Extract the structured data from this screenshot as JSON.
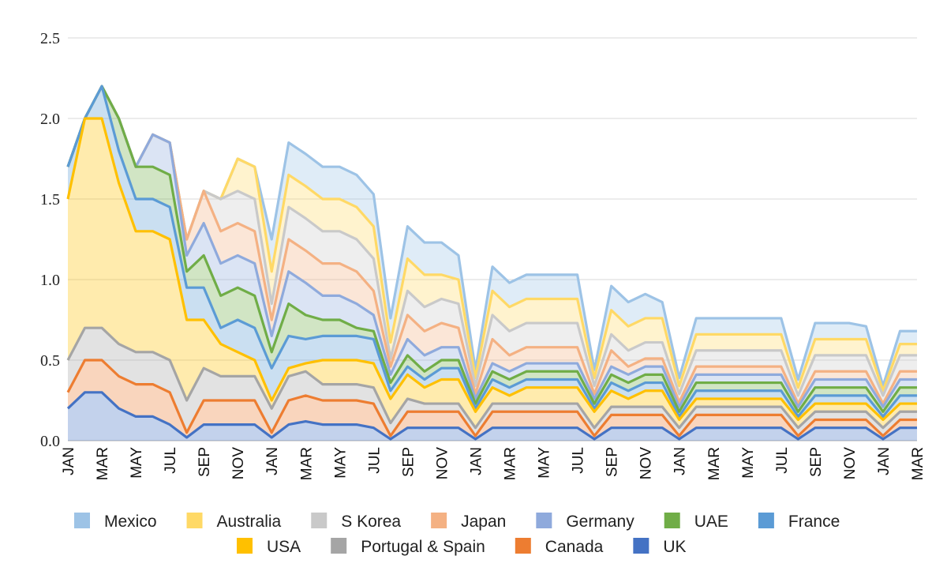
{
  "chart_data": {
    "type": "area",
    "stacked": true,
    "title": "",
    "xlabel": "",
    "ylabel": "",
    "ylim": [
      0,
      2.5
    ],
    "yticks": [
      "0.0",
      "0.5",
      "1.0",
      "1.5",
      "2.0",
      "2.5"
    ],
    "grid": true,
    "legend_position": "bottom",
    "categories": [
      "JAN",
      "FEB",
      "MAR",
      "APR",
      "MAY",
      "JUN",
      "JUL",
      "AUG",
      "SEP",
      "OCT",
      "NOV",
      "DEC",
      "JAN",
      "FEB",
      "MAR",
      "APR",
      "MAY",
      "JUN",
      "JUL",
      "AUG",
      "SEP",
      "OCT",
      "NOV",
      "DEC",
      "JAN",
      "FEB",
      "MAR",
      "APR",
      "MAY",
      "JUN",
      "JUL",
      "AUG",
      "SEP",
      "OCT",
      "NOV",
      "DEC",
      "JAN",
      "FEB",
      "MAR",
      "APR",
      "MAY",
      "JUN",
      "JUL",
      "AUG",
      "SEP",
      "OCT",
      "NOV",
      "DEC",
      "JAN",
      "FEB",
      "MAR"
    ],
    "x_tick_labels": [
      "JAN",
      "MAR",
      "MAY",
      "JUL",
      "SEP",
      "NOV",
      "JAN",
      "MAR",
      "MAY",
      "JUL",
      "SEP",
      "NOV",
      "JAN",
      "MAR",
      "MAY",
      "JUL",
      "SEP",
      "NOV",
      "JAN",
      "MAR",
      "MAY",
      "JUL",
      "SEP",
      "NOV",
      "JAN",
      "MAR"
    ],
    "series": [
      {
        "name": "UK",
        "color": "#4472c4",
        "values": [
          0.2,
          0.3,
          0.3,
          0.2,
          0.15,
          0.15,
          0.1,
          0.02,
          0.1,
          0.1,
          0.1,
          0.1,
          0.02,
          0.1,
          0.12,
          0.1,
          0.1,
          0.1,
          0.08,
          0.01,
          0.08,
          0.08,
          0.08,
          0.08,
          0.01,
          0.08,
          0.08,
          0.08,
          0.08,
          0.08,
          0.08,
          0.01,
          0.08,
          0.08,
          0.08,
          0.08,
          0.01,
          0.08,
          0.08,
          0.08,
          0.08,
          0.08,
          0.08,
          0.01,
          0.08,
          0.08,
          0.08,
          0.08,
          0.01,
          0.08,
          0.08
        ]
      },
      {
        "name": "Canada",
        "color": "#ed7d31",
        "values": [
          0.1,
          0.2,
          0.2,
          0.2,
          0.2,
          0.2,
          0.2,
          0.03,
          0.15,
          0.15,
          0.15,
          0.15,
          0.03,
          0.15,
          0.16,
          0.15,
          0.15,
          0.15,
          0.15,
          0.02,
          0.1,
          0.1,
          0.1,
          0.1,
          0.02,
          0.1,
          0.1,
          0.1,
          0.1,
          0.1,
          0.1,
          0.02,
          0.08,
          0.08,
          0.08,
          0.08,
          0.02,
          0.08,
          0.08,
          0.08,
          0.08,
          0.08,
          0.08,
          0.02,
          0.05,
          0.05,
          0.05,
          0.05,
          0.02,
          0.05,
          0.05
        ]
      },
      {
        "name": "Portugal & Spain",
        "color": "#a5a5a5",
        "values": [
          0.2,
          0.2,
          0.2,
          0.2,
          0.2,
          0.2,
          0.2,
          0.2,
          0.2,
          0.15,
          0.15,
          0.15,
          0.15,
          0.15,
          0.15,
          0.1,
          0.1,
          0.1,
          0.1,
          0.08,
          0.08,
          0.05,
          0.05,
          0.05,
          0.05,
          0.05,
          0.05,
          0.05,
          0.05,
          0.05,
          0.05,
          0.05,
          0.05,
          0.05,
          0.05,
          0.05,
          0.05,
          0.05,
          0.05,
          0.05,
          0.05,
          0.05,
          0.05,
          0.05,
          0.05,
          0.05,
          0.05,
          0.05,
          0.05,
          0.05,
          0.05
        ]
      },
      {
        "name": "USA",
        "color": "#ffc000",
        "values": [
          1.0,
          1.3,
          1.3,
          1.0,
          0.75,
          0.75,
          0.75,
          0.5,
          0.3,
          0.2,
          0.15,
          0.1,
          0.05,
          0.05,
          0.05,
          0.15,
          0.15,
          0.15,
          0.15,
          0.15,
          0.15,
          0.1,
          0.15,
          0.15,
          0.1,
          0.1,
          0.05,
          0.1,
          0.1,
          0.1,
          0.1,
          0.1,
          0.1,
          0.05,
          0.1,
          0.1,
          0.05,
          0.05,
          0.05,
          0.05,
          0.05,
          0.05,
          0.05,
          0.05,
          0.05,
          0.05,
          0.05,
          0.05,
          0.05,
          0.05,
          0.05
        ]
      },
      {
        "name": "France",
        "color": "#5b9bd5",
        "values": [
          0.2,
          0.0,
          0.2,
          0.2,
          0.2,
          0.2,
          0.2,
          0.2,
          0.2,
          0.1,
          0.2,
          0.2,
          0.2,
          0.2,
          0.15,
          0.15,
          0.15,
          0.15,
          0.15,
          0.05,
          0.05,
          0.05,
          0.07,
          0.07,
          0.02,
          0.05,
          0.05,
          0.05,
          0.05,
          0.05,
          0.05,
          0.02,
          0.05,
          0.05,
          0.05,
          0.05,
          0.02,
          0.05,
          0.05,
          0.05,
          0.05,
          0.05,
          0.05,
          0.02,
          0.05,
          0.05,
          0.05,
          0.05,
          0.02,
          0.05,
          0.05
        ]
      },
      {
        "name": "UAE",
        "color": "#70ad47",
        "values": [
          0.0,
          0.0,
          0.0,
          0.2,
          0.2,
          0.2,
          0.2,
          0.1,
          0.2,
          0.2,
          0.2,
          0.2,
          0.1,
          0.2,
          0.15,
          0.1,
          0.1,
          0.05,
          0.05,
          0.05,
          0.07,
          0.05,
          0.05,
          0.05,
          0.03,
          0.05,
          0.05,
          0.05,
          0.05,
          0.05,
          0.05,
          0.03,
          0.05,
          0.05,
          0.05,
          0.05,
          0.03,
          0.05,
          0.05,
          0.05,
          0.05,
          0.05,
          0.05,
          0.03,
          0.05,
          0.05,
          0.05,
          0.05,
          0.03,
          0.05,
          0.05
        ]
      },
      {
        "name": "Germany",
        "color": "#8faadc",
        "values": [
          0.0,
          0.0,
          0.0,
          0.0,
          0.0,
          0.2,
          0.2,
          0.1,
          0.2,
          0.2,
          0.2,
          0.2,
          0.1,
          0.2,
          0.2,
          0.15,
          0.15,
          0.15,
          0.1,
          0.05,
          0.1,
          0.1,
          0.08,
          0.08,
          0.03,
          0.05,
          0.05,
          0.05,
          0.05,
          0.05,
          0.05,
          0.03,
          0.05,
          0.05,
          0.05,
          0.05,
          0.03,
          0.05,
          0.05,
          0.05,
          0.05,
          0.05,
          0.05,
          0.03,
          0.05,
          0.05,
          0.05,
          0.05,
          0.03,
          0.05,
          0.05
        ]
      },
      {
        "name": "Japan",
        "color": "#f4b183",
        "values": [
          0.0,
          0.0,
          0.0,
          0.0,
          0.0,
          0.0,
          0.0,
          0.1,
          0.2,
          0.2,
          0.2,
          0.2,
          0.1,
          0.2,
          0.2,
          0.2,
          0.2,
          0.2,
          0.15,
          0.05,
          0.15,
          0.15,
          0.15,
          0.12,
          0.03,
          0.15,
          0.1,
          0.1,
          0.1,
          0.1,
          0.1,
          0.03,
          0.1,
          0.05,
          0.05,
          0.05,
          0.03,
          0.05,
          0.05,
          0.05,
          0.05,
          0.05,
          0.05,
          0.02,
          0.05,
          0.05,
          0.05,
          0.05,
          0.02,
          0.05,
          0.05
        ]
      },
      {
        "name": "S Korea",
        "color": "#c9c9c9",
        "values": [
          0.0,
          0.0,
          0.0,
          0.0,
          0.0,
          0.0,
          0.0,
          0.0,
          0.0,
          0.2,
          0.2,
          0.2,
          0.1,
          0.2,
          0.2,
          0.2,
          0.2,
          0.2,
          0.2,
          0.05,
          0.15,
          0.15,
          0.15,
          0.15,
          0.05,
          0.15,
          0.15,
          0.15,
          0.15,
          0.15,
          0.15,
          0.05,
          0.1,
          0.1,
          0.1,
          0.1,
          0.05,
          0.1,
          0.1,
          0.1,
          0.1,
          0.1,
          0.1,
          0.05,
          0.1,
          0.1,
          0.1,
          0.1,
          0.05,
          0.1,
          0.1
        ]
      },
      {
        "name": "Australia",
        "color": "#ffd966",
        "values": [
          0.0,
          0.0,
          0.0,
          0.0,
          0.0,
          0.0,
          0.0,
          0.0,
          0.0,
          0.0,
          0.2,
          0.2,
          0.2,
          0.2,
          0.2,
          0.2,
          0.2,
          0.2,
          0.2,
          0.1,
          0.2,
          0.2,
          0.15,
          0.15,
          0.05,
          0.15,
          0.15,
          0.15,
          0.15,
          0.15,
          0.15,
          0.05,
          0.15,
          0.15,
          0.15,
          0.15,
          0.05,
          0.1,
          0.1,
          0.1,
          0.1,
          0.1,
          0.1,
          0.05,
          0.1,
          0.1,
          0.1,
          0.1,
          0.03,
          0.07,
          0.07
        ]
      },
      {
        "name": "Mexico",
        "color": "#9dc3e6",
        "values": [
          0.0,
          0.0,
          0.0,
          0.0,
          0.0,
          0.0,
          0.0,
          0.0,
          0.0,
          0.0,
          0.0,
          0.0,
          0.2,
          0.2,
          0.2,
          0.2,
          0.2,
          0.2,
          0.2,
          0.15,
          0.2,
          0.2,
          0.2,
          0.15,
          0.05,
          0.15,
          0.15,
          0.15,
          0.15,
          0.15,
          0.15,
          0.05,
          0.15,
          0.15,
          0.15,
          0.1,
          0.05,
          0.1,
          0.1,
          0.1,
          0.1,
          0.1,
          0.1,
          0.05,
          0.1,
          0.1,
          0.1,
          0.08,
          0.03,
          0.08,
          0.08
        ]
      }
    ],
    "legend_rows": [
      [
        "Mexico",
        "Australia",
        "S Korea",
        "Japan",
        "Germany",
        "UAE",
        "France"
      ],
      [
        "USA",
        "Portugal & Spain",
        "Canada",
        "UK"
      ]
    ]
  }
}
